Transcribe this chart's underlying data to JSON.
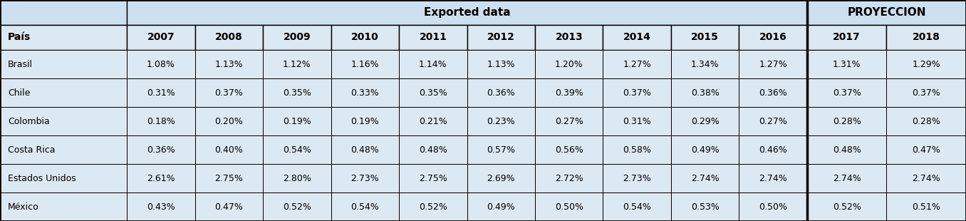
{
  "header_group1": "Exported data",
  "header_group2": "PROYECCION",
  "col_headers": [
    "País",
    "2007",
    "2008",
    "2009",
    "2010",
    "2011",
    "2012",
    "2013",
    "2014",
    "2015",
    "2016",
    "2017",
    "2018"
  ],
  "rows": [
    [
      "Brasil",
      "1.08%",
      "1.13%",
      "1.12%",
      "1.16%",
      "1.14%",
      "1.13%",
      "1.20%",
      "1.27%",
      "1.34%",
      "1.27%",
      "1.31%",
      "1.29%"
    ],
    [
      "Chile",
      "0.31%",
      "0.37%",
      "0.35%",
      "0.33%",
      "0.35%",
      "0.36%",
      "0.39%",
      "0.37%",
      "0.38%",
      "0.36%",
      "0.37%",
      "0.37%"
    ],
    [
      "Colombia",
      "0.18%",
      "0.20%",
      "0.19%",
      "0.19%",
      "0.21%",
      "0.23%",
      "0.27%",
      "0.31%",
      "0.29%",
      "0.27%",
      "0.28%",
      "0.28%"
    ],
    [
      "Costa Rica",
      "0.36%",
      "0.40%",
      "0.54%",
      "0.48%",
      "0.48%",
      "0.57%",
      "0.56%",
      "0.58%",
      "0.49%",
      "0.46%",
      "0.48%",
      "0.47%"
    ],
    [
      "Estados Unidos",
      "2.61%",
      "2.75%",
      "2.80%",
      "2.73%",
      "2.75%",
      "2.69%",
      "2.72%",
      "2.73%",
      "2.74%",
      "2.74%",
      "2.74%",
      "2.74%"
    ],
    [
      "México",
      "0.43%",
      "0.47%",
      "0.52%",
      "0.54%",
      "0.52%",
      "0.49%",
      "0.50%",
      "0.54%",
      "0.53%",
      "0.50%",
      "0.52%",
      "0.51%"
    ]
  ],
  "bg_color_top_header": "#cde0ef",
  "bg_color_col_header": "#dce8f2",
  "bg_color_data": "#dce8f2",
  "text_color": "#000000",
  "border_color": "#000000",
  "figsize": [
    13.56,
    3.1
  ],
  "dpi": 100
}
